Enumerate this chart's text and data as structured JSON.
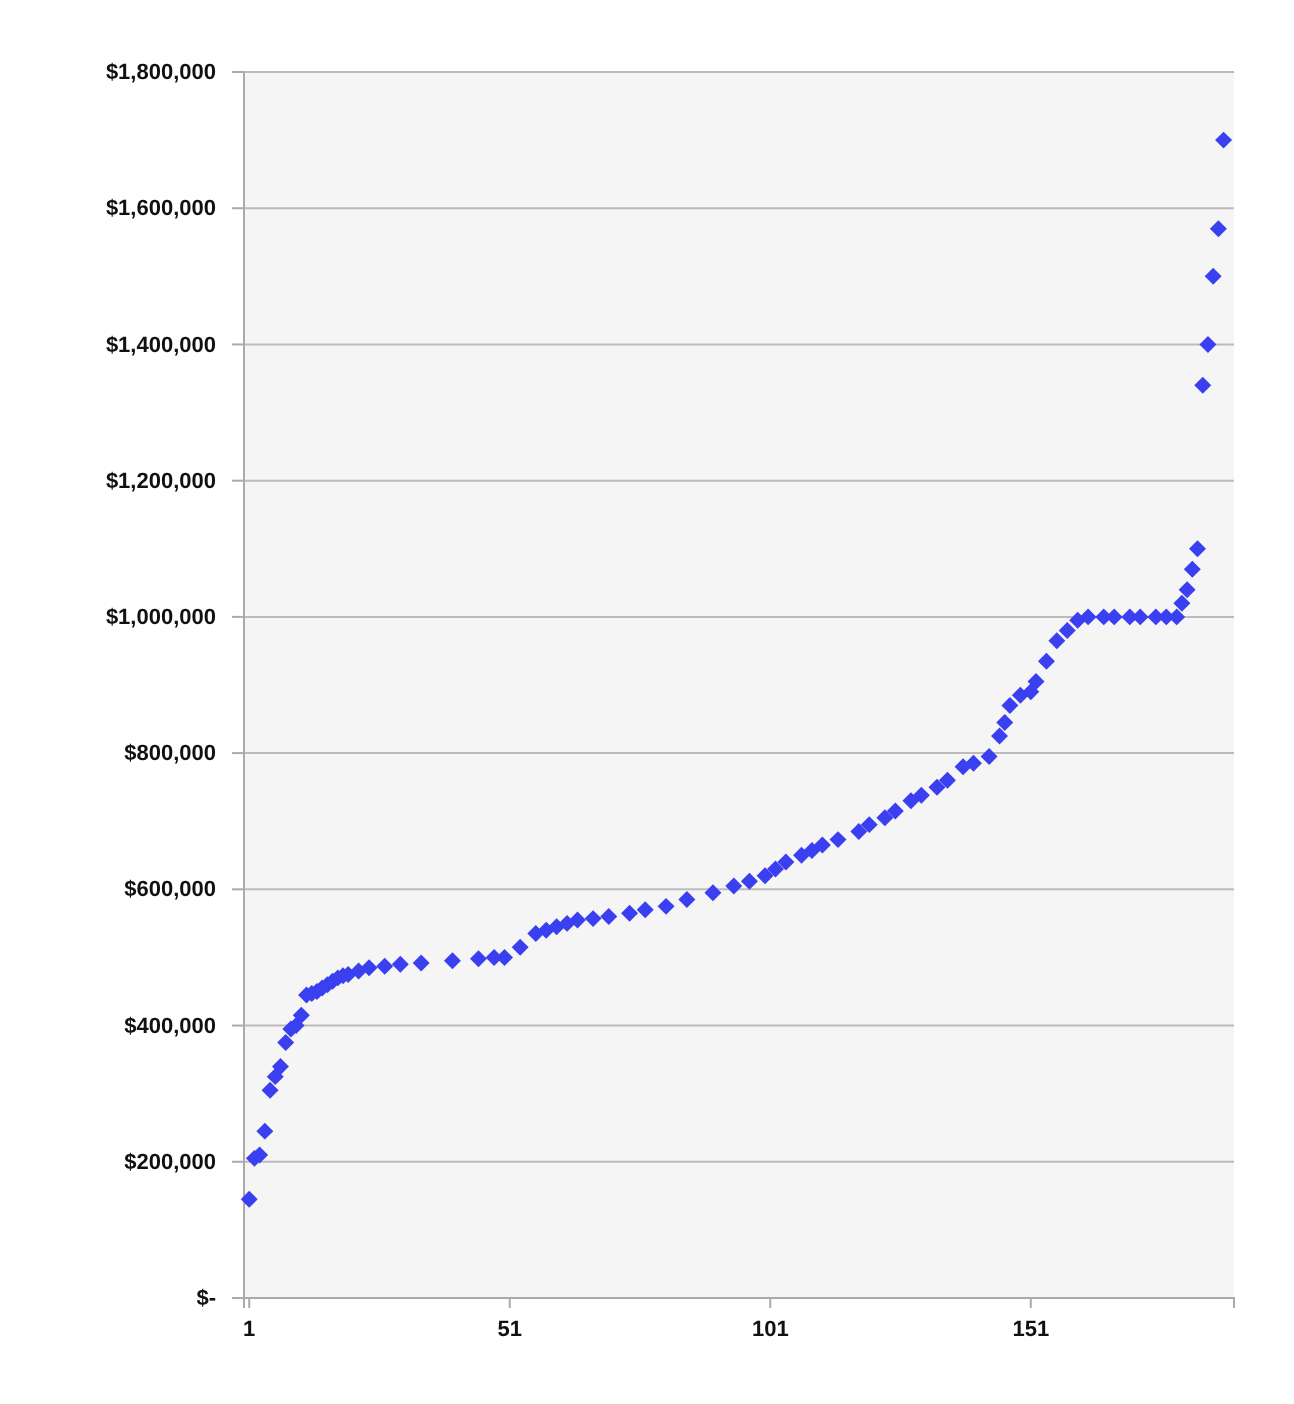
{
  "chart_data": {
    "type": "scatter",
    "marker": "diamond",
    "grid": "y",
    "xlim": [
      0,
      190
    ],
    "xticks": [
      1,
      51,
      101,
      151
    ],
    "ylim": [
      0,
      1800000
    ],
    "yticks": [
      {
        "value": 0,
        "label": "$-"
      },
      {
        "value": 200000,
        "label": "$200,000"
      },
      {
        "value": 400000,
        "label": "$400,000"
      },
      {
        "value": 600000,
        "label": "$600,000"
      },
      {
        "value": 800000,
        "label": "$800,000"
      },
      {
        "value": 1000000,
        "label": "$1,000,000"
      },
      {
        "value": 1200000,
        "label": "$1,200,000"
      },
      {
        "value": 1400000,
        "label": "$1,400,000"
      },
      {
        "value": 1600000,
        "label": "$1,600,000"
      },
      {
        "value": 1800000,
        "label": "$1,800,000"
      }
    ],
    "series": [
      {
        "color": "#3a3ff0",
        "x": [
          1,
          2,
          3,
          4,
          5,
          6,
          7,
          8,
          9,
          10,
          11,
          12,
          13,
          14,
          15,
          16,
          17,
          18,
          19,
          20,
          22,
          24,
          27,
          30,
          34,
          40,
          45,
          48,
          50,
          53,
          56,
          58,
          60,
          62,
          64,
          67,
          70,
          74,
          77,
          81,
          85,
          90,
          94,
          97,
          100,
          102,
          104,
          107,
          109,
          111,
          114,
          118,
          120,
          123,
          125,
          128,
          130,
          133,
          135,
          138,
          140,
          143,
          145,
          146,
          147,
          149,
          151,
          152,
          154,
          156,
          158,
          160,
          162,
          165,
          167,
          170,
          172,
          175,
          177,
          179,
          180,
          181,
          182,
          183,
          184,
          185,
          186,
          187,
          188
        ],
        "values": [
          145000,
          205000,
          210000,
          245000,
          305000,
          325000,
          340000,
          375000,
          395000,
          400000,
          415000,
          445000,
          447000,
          450000,
          455000,
          460000,
          465000,
          470000,
          473000,
          475000,
          480000,
          485000,
          487000,
          490000,
          492000,
          495000,
          498000,
          500000,
          500000,
          515000,
          535000,
          540000,
          545000,
          550000,
          555000,
          557000,
          560000,
          565000,
          570000,
          575000,
          585000,
          595000,
          605000,
          612000,
          620000,
          630000,
          640000,
          650000,
          657000,
          665000,
          673000,
          685000,
          695000,
          705000,
          715000,
          730000,
          738000,
          750000,
          760000,
          780000,
          785000,
          795000,
          825000,
          845000,
          870000,
          885000,
          890000,
          905000,
          935000,
          965000,
          980000,
          995000,
          1000000,
          1000000,
          1000000,
          1000000,
          1000000,
          1000000,
          1000000,
          1000000,
          1020000,
          1040000,
          1070000,
          1100000,
          1340000,
          1400000,
          1500000,
          1570000,
          1700000
        ]
      }
    ]
  }
}
